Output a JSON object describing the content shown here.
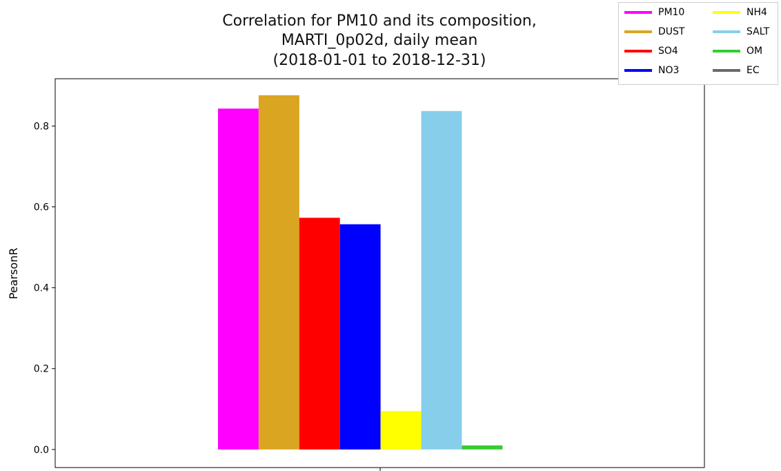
{
  "chart_data": {
    "type": "bar",
    "title_lines": [
      "Correlation for PM10 and its composition,",
      "MARTI_0p02d, daily mean",
      "(2018-01-01 to 2018-12-31)"
    ],
    "xlabel": "",
    "ylabel": "PearsonR",
    "ylim": [
      -0.0447,
      0.9169
    ],
    "yticks": [
      "0.0",
      "0.2",
      "0.4",
      "0.6",
      "0.8"
    ],
    "ytick_values": [
      0.0,
      0.2,
      0.4,
      0.6,
      0.8
    ],
    "grid": false,
    "legend_placement": "top-right",
    "legend_columns": 2,
    "series": [
      {
        "name": "PM10",
        "value": 0.843,
        "color": "#ff00ff"
      },
      {
        "name": "DUST",
        "value": 0.876,
        "color": "#daa520"
      },
      {
        "name": "SO4",
        "value": 0.573,
        "color": "#ff0000"
      },
      {
        "name": "NO3",
        "value": 0.557,
        "color": "#0000ff"
      },
      {
        "name": "NH4",
        "value": 0.095,
        "color": "#ffff00"
      },
      {
        "name": "SALT",
        "value": 0.837,
        "color": "#87ceeb"
      },
      {
        "name": "OM",
        "value": 0.01,
        "color": "#32cd32"
      },
      {
        "name": "EC",
        "value": 0.0,
        "color": "#696969"
      }
    ]
  }
}
